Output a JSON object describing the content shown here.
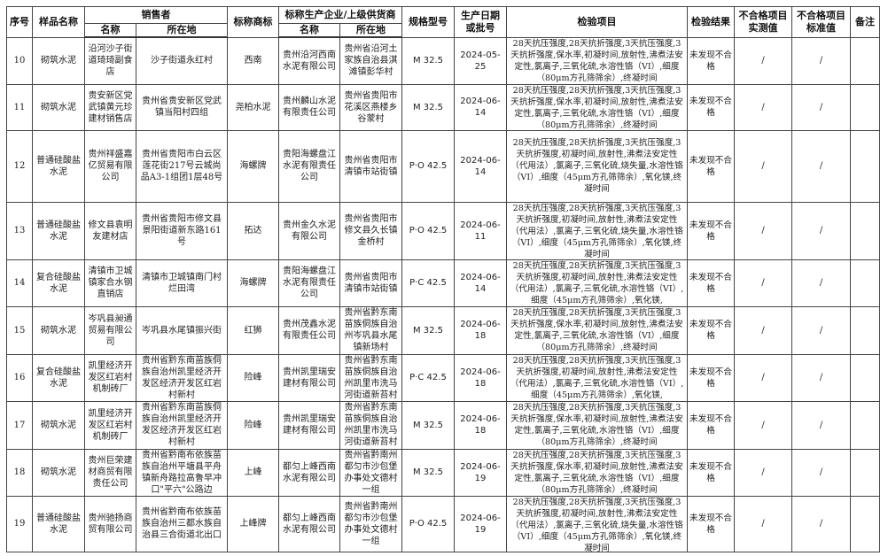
{
  "header": {
    "index": "序号",
    "sample_name": "样品名称",
    "seller": "销售者",
    "seller_name": "名称",
    "seller_address": "所在地",
    "trademark": "标称商标",
    "producer": "标称生产企业/上级供货商",
    "producer_name": "名称",
    "producer_address": "所在地",
    "spec": "规格型号",
    "date": "生产日期或批号",
    "items": "检验项目",
    "result": "检验结果",
    "fail_measured": "不合格项目实测值",
    "fail_standard": "不合格项目标准值",
    "remark": "备注"
  },
  "rows": [
    {
      "index": "10",
      "sample": "砌筑水泥",
      "seller_name": "沿河沙子街道琦琦副食店",
      "seller_address": "沙子街道永红村",
      "trademark": "西南",
      "producer_name": "贵州沿河西南水泥有限公司",
      "producer_address": "贵州省沿河土家族自治县淇滩镇彭华村",
      "spec": "M 32.5",
      "date": "2024-05-25",
      "items": "28天抗压强度,28天抗折强度,3天抗压强度,3天抗折强度,保水率,初凝时间,放射性,沸煮法安定性,氯离子,三氧化硫,水溶性铬（VI）,细度（80μm方孔筛筛余）,终凝时间",
      "result": "未发现不合格",
      "measured": "/",
      "standard": "/",
      "remark": ""
    },
    {
      "index": "11",
      "sample": "砌筑水泥",
      "seller_name": "贵安新区党武镇黄元珍建材销售店",
      "seller_address": "贵州省贵安新区党武镇当阳村四组",
      "trademark": "尧柏水泥",
      "producer_name": "贵州麟山水泥有限责任公司",
      "producer_address": "贵州省贵阳市花溪区燕楼乡谷蒙村",
      "spec": "M 32.5",
      "date": "2024-06-14",
      "items": "28天抗压强度,28天抗折强度,3天抗压强度,3天抗折强度,保水率,初凝时间,放射性,沸煮法安定性,氯离子,三氧化硫,水溶性铬（VI）,细度（80μm方孔筛筛余）,终凝时间",
      "result": "未发现不合格",
      "measured": "/",
      "standard": "/",
      "remark": ""
    },
    {
      "index": "12",
      "sample": "普通硅酸盐水泥",
      "seller_name": "贵州祥盛嘉亿贸易有限公司",
      "seller_address": "贵州省贵阳市白云区莲花街217号云城尚品A3-1组团1层48号",
      "trademark": "海螺牌",
      "producer_name": "贵阳海螺盘江水泥有限责任公司",
      "producer_address": "贵州省贵阳市清镇市站街镇",
      "spec": "P·O 42.5",
      "date": "2024-06-14",
      "items": "28天抗压强度,28天抗折强度,3天抗压强度,3天抗折强度,初凝时间,放射性,沸煮法安定性（代用法）,氯离子,三氧化硫,烧失量,水溶性铬（VI）,细度（45μm方孔筛筛余）,氧化镁,终凝时间",
      "result": "未发现不合格",
      "measured": "/",
      "standard": "/",
      "remark": ""
    },
    {
      "index": "13",
      "sample": "普通硅酸盐水泥",
      "seller_name": "修文县袁明友建材店",
      "seller_address": "贵州省贵阳市修文县景阳街道新东路161号",
      "trademark": "拓达",
      "producer_name": "贵州金久水泥有限公司",
      "producer_address": "贵州省贵阳市修文县久长镇金桥村",
      "spec": "P·O 42.5",
      "date": "2024-06-11",
      "items": "28天抗压强度,28天抗折强度,3天抗压强度,3天抗折强度,初凝时间,放射性,沸煮法安定性（代用法）,氯离子,三氧化硫,烧失量,水溶性铬（VI）,细度（45μm方孔筛筛余）,氧化镁,终凝时间",
      "result": "未发现不合格",
      "measured": "/",
      "standard": "/",
      "remark": ""
    },
    {
      "index": "14",
      "sample": "复合硅酸盐水泥",
      "seller_name": "清镇市卫城镇家合水钢直销店",
      "seller_address": "清镇市卫城镇南门村烂田湾",
      "trademark": "海螺牌",
      "producer_name": "贵阳海螺盘江水泥有限责任公司",
      "producer_address": "贵州省贵阳市清镇市站街镇",
      "spec": "P·C 42.5",
      "date": "2024-06-14",
      "items": "28天抗压强度,28天抗折强度,3天抗压强度,3天抗折强度,初凝时间,放射性,沸煮法安定性（代用法）,氯离子,三氧化硫,水溶性铬（VI）,细度（45μm方孔筛筛余）,氧化镁,",
      "result": "未发现不合格",
      "measured": "/",
      "standard": "/",
      "remark": ""
    },
    {
      "index": "15",
      "sample": "砌筑水泥",
      "seller_name": "岑巩县昶通贸易有限公司",
      "seller_address": "岑巩县水尾镇振兴街",
      "trademark": "红狮",
      "producer_name": "贵州茂鑫水泥有限责任公司",
      "producer_address": "贵州省黔东南苗族侗族自治州岑巩县水尾镇新场村",
      "spec": "M 32.5",
      "date": "2024-06-18",
      "items": "28天抗压强度,28天抗折强度,3天抗压强度,3天抗折强度,保水率,初凝时间,放射性,沸煮法安定性,氯离子,三氧化硫,水溶性铬（VI）,细度（80μm方孔筛筛余）,终凝时间",
      "result": "未发现不合格",
      "measured": "/",
      "standard": "/",
      "remark": ""
    },
    {
      "index": "16",
      "sample": "复合硅酸盐水泥",
      "seller_name": "凯里经济开发区红岩村机制砖厂",
      "seller_address": "贵州省黔东南苗族侗族自治州凯里经济开发区经济开发区红岩村新村",
      "trademark": "险峰",
      "producer_name": "贵州凯里瑞安建材有限公司",
      "producer_address": "贵州省黔东南苗族侗族自治州凯里市洗马河街道新苔村",
      "spec": "P·C 42.5",
      "date": "2024-06-18",
      "items": "28天抗压强度,28天抗折强度,3天抗压强度,3天抗折强度,初凝时间,放射性,沸煮法安定性（代用法）,氯离子,三氧化硫,水溶性铬（VI）,细度（45μm方孔筛筛余）,氧化镁,",
      "result": "未发现不合格",
      "measured": "/",
      "standard": "/",
      "remark": ""
    },
    {
      "index": "17",
      "sample": "砌筑水泥",
      "seller_name": "凯里经济开发区红岩村机制砖厂",
      "seller_address": "贵州省黔东南苗族侗族自治州凯里经济开发区经济开发区红岩村新村",
      "trademark": "险峰",
      "producer_name": "贵州凯里瑞安建材有限公司",
      "producer_address": "贵州省黔东南苗族侗族自治州凯里市洗马河街道新苔村",
      "spec": "M 32.5",
      "date": "2024-06-18",
      "items": "28天抗压强度,28天抗折强度,3天抗压强度,3天抗折强度,保水率,初凝时间,放射性,沸煮法安定性,氯离子,三氧化硫,水溶性铬（VI）,细度（80μm方孔筛筛余）,终凝时间",
      "result": "未发现不合格",
      "measured": "/",
      "standard": "/",
      "remark": ""
    },
    {
      "index": "18",
      "sample": "砌筑水泥",
      "seller_name": "贵州巨荣建材商贸有限责任公司",
      "seller_address": "贵州省黔南布依族苗族自治州平塘县平舟镇新舟路拉高鲁早冲口\"平六\"公路边",
      "trademark": "上峰",
      "producer_name": "都匀上峰西南水泥有限公司",
      "producer_address": "贵州省黔南州都匀市沙包堡办事处文德村一组",
      "spec": "M 32.5",
      "date": "2024-06-19",
      "items": "28天抗压强度,28天抗折强度,3天抗压强度,3天抗折强度,保水率,初凝时间,放射性,沸煮法安定性,氯离子,三氧化硫,水溶性铬（VI）,细度（80μm方孔筛筛余）,终凝时间",
      "result": "未发现不合格",
      "measured": "/",
      "standard": "/",
      "remark": ""
    },
    {
      "index": "19",
      "sample": "普通硅酸盐水泥",
      "seller_name": "贵州驰扬商贸有限公司",
      "seller_address": "贵州省黔南布依族苗族自治州三都水族自治县三合街道北出口",
      "trademark": "上峰牌",
      "producer_name": "都匀上峰西南水泥有限公司",
      "producer_address": "贵州省黔南州都匀市沙包堡办事处文德村一组",
      "spec": "P·O 42.5",
      "date": "2024-06-19",
      "items": "28天抗压强度,28天抗折强度,3天抗压强度,3天抗折强度,初凝时间,放射性,沸煮法安定性（代用法）,氯离子,三氧化硫,烧失量,水溶性铬（VI）,细度（45μm方孔筛筛余）,氧化镁,终凝时间",
      "result": "未发现不合格",
      "measured": "/",
      "standard": "/",
      "remark": ""
    }
  ]
}
